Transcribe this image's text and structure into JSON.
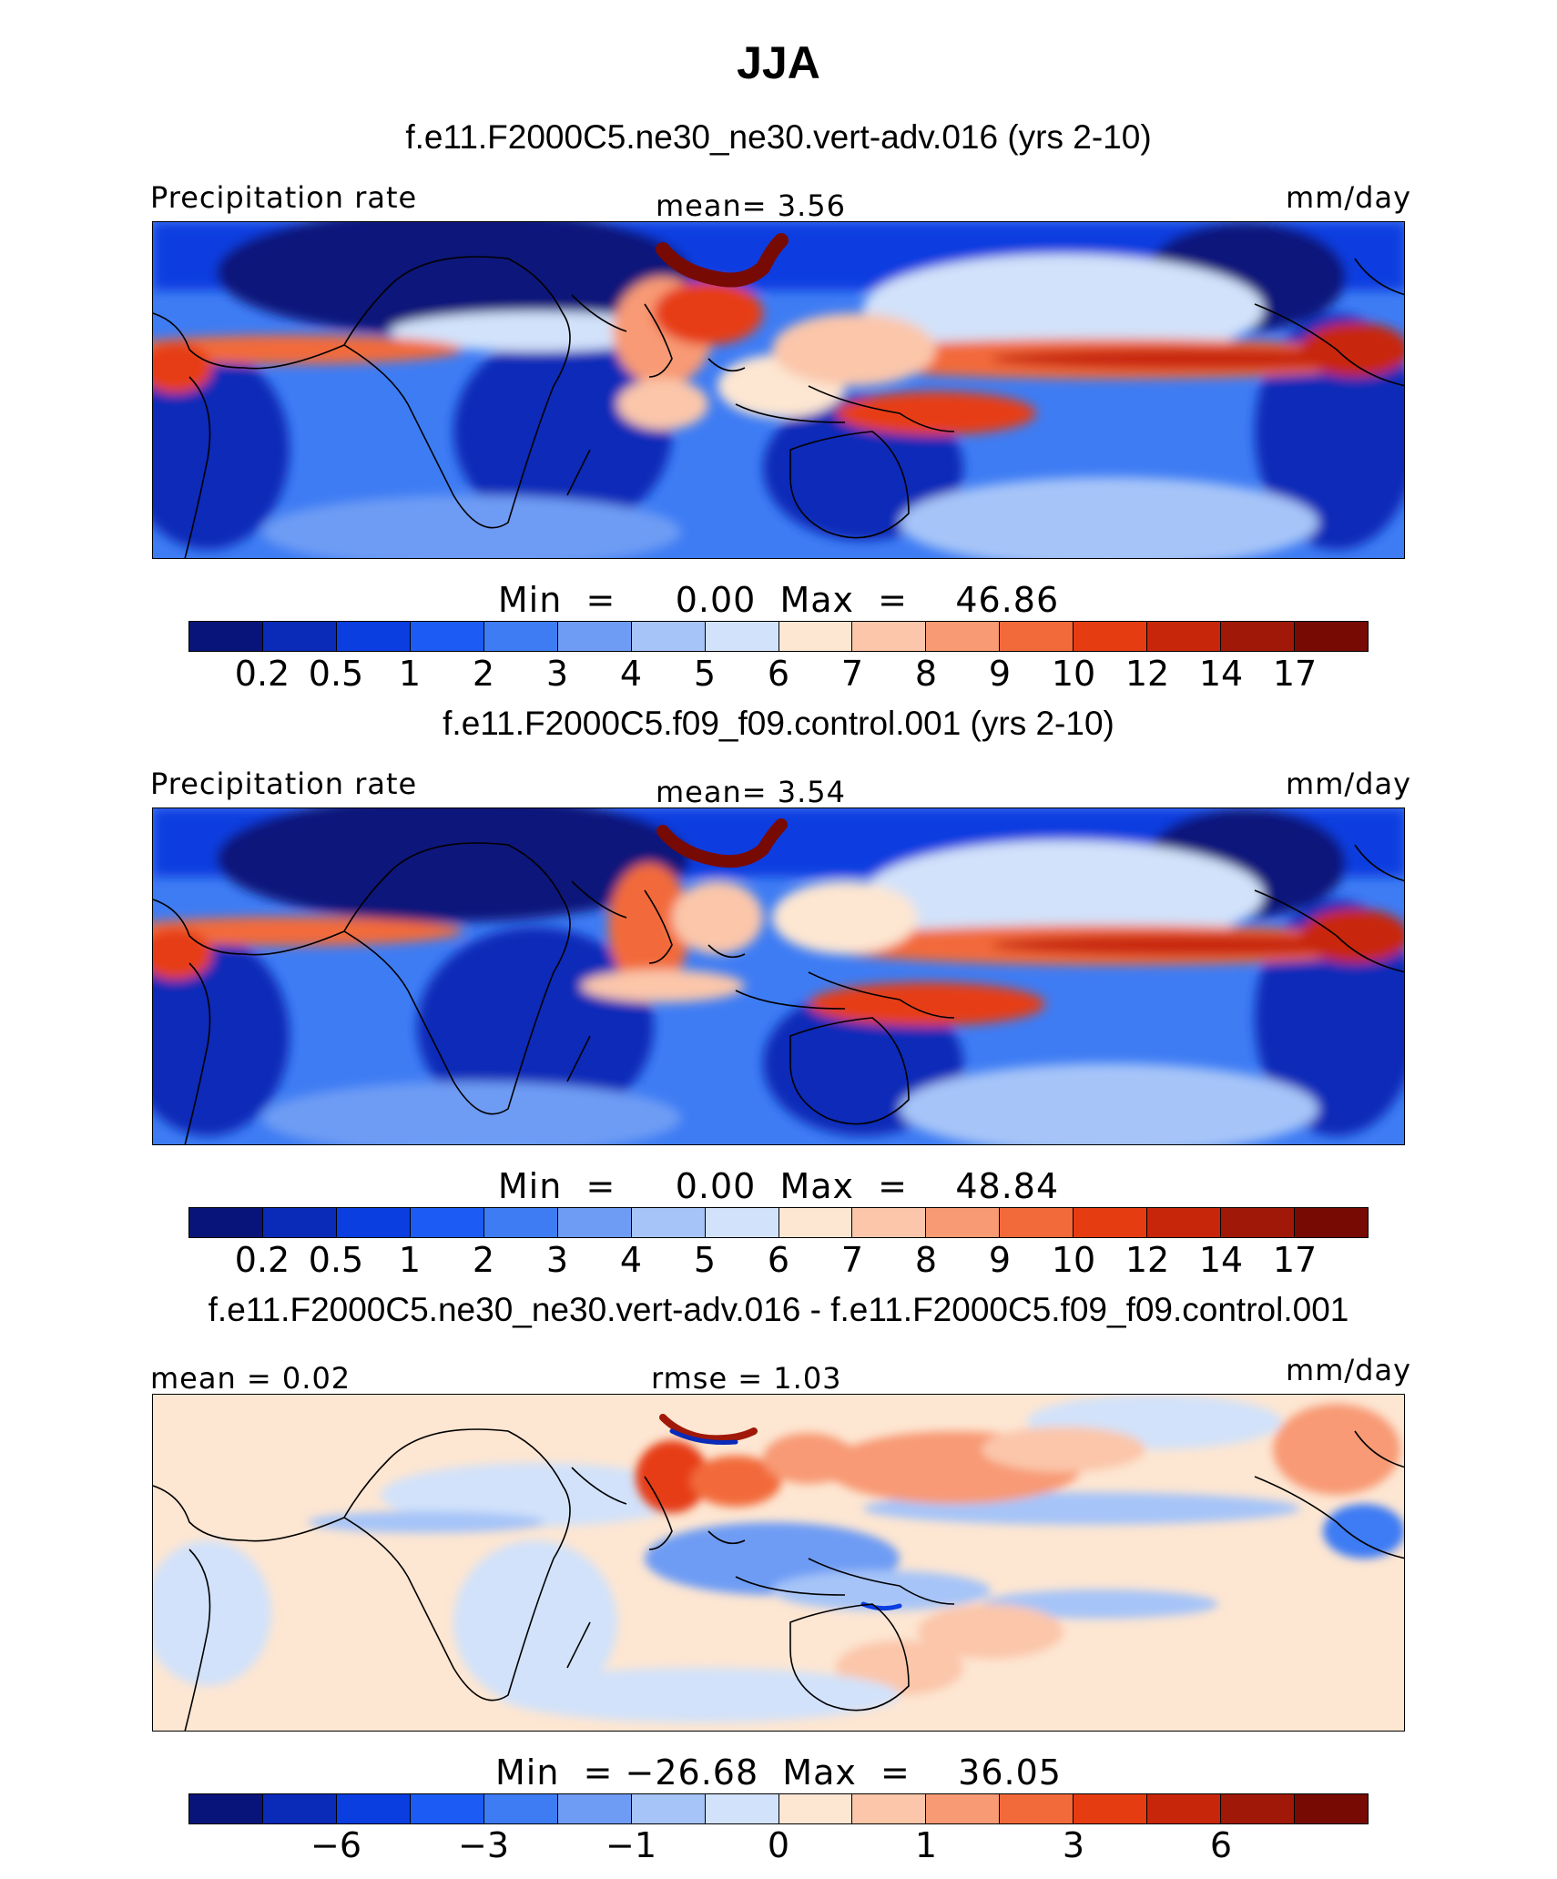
{
  "title": "JJA",
  "colors": {
    "main": [
      "#08147a",
      "#0a2ab8",
      "#0a3ee0",
      "#1c5cf4",
      "#3e7cf4",
      "#6e9cf4",
      "#a6c4f8",
      "#d2e2fa",
      "#fde6d2",
      "#fbc6aa",
      "#f89a74",
      "#f26a3a",
      "#e63c12",
      "#c8260a",
      "#a01808",
      "#780a04"
    ],
    "diff": [
      "#08147a",
      "#0a2ab8",
      "#0a3ee0",
      "#1c5cf4",
      "#3e7cf4",
      "#6e9cf4",
      "#a6c4f8",
      "#d2e2fa",
      "#fde6d2",
      "#fbc6aa",
      "#f89a74",
      "#f26a3a",
      "#e63c12",
      "#c8260a",
      "#a01808",
      "#780a04"
    ]
  },
  "panels": [
    {
      "case": "f.e11.F2000C5.ne30_ne30.vert-adv.016 (yrs 2-10)",
      "left_label": "Precipitation rate",
      "center_label": "mean=   3.56",
      "units": "mm/day",
      "minmax": "Min  =     0.00  Max  =    46.86"
    },
    {
      "case": "f.e11.F2000C5.f09_f09.control.001 (yrs 2-10)",
      "left_label": "Precipitation rate",
      "center_label": "mean=   3.54",
      "units": "mm/day",
      "minmax": "Min  =     0.00  Max  =    48.84"
    },
    {
      "case": "f.e11.F2000C5.ne30_ne30.vert-adv.016 - f.e11.F2000C5.f09_f09.control.001",
      "left_label": "mean =    0.02",
      "center_label": "rmse  =    1.03",
      "units": "mm/day",
      "minmax": "Min  = −26.68  Max  =    36.05"
    }
  ],
  "colorbar_ticks": {
    "main": [
      "0.2",
      "0.5",
      "1",
      "2",
      "3",
      "4",
      "5",
      "6",
      "7",
      "8",
      "9",
      "10",
      "12",
      "14",
      "17"
    ],
    "diff": [
      "−6",
      "−3",
      "−1",
      "0",
      "1",
      "3",
      "6"
    ]
  }
}
